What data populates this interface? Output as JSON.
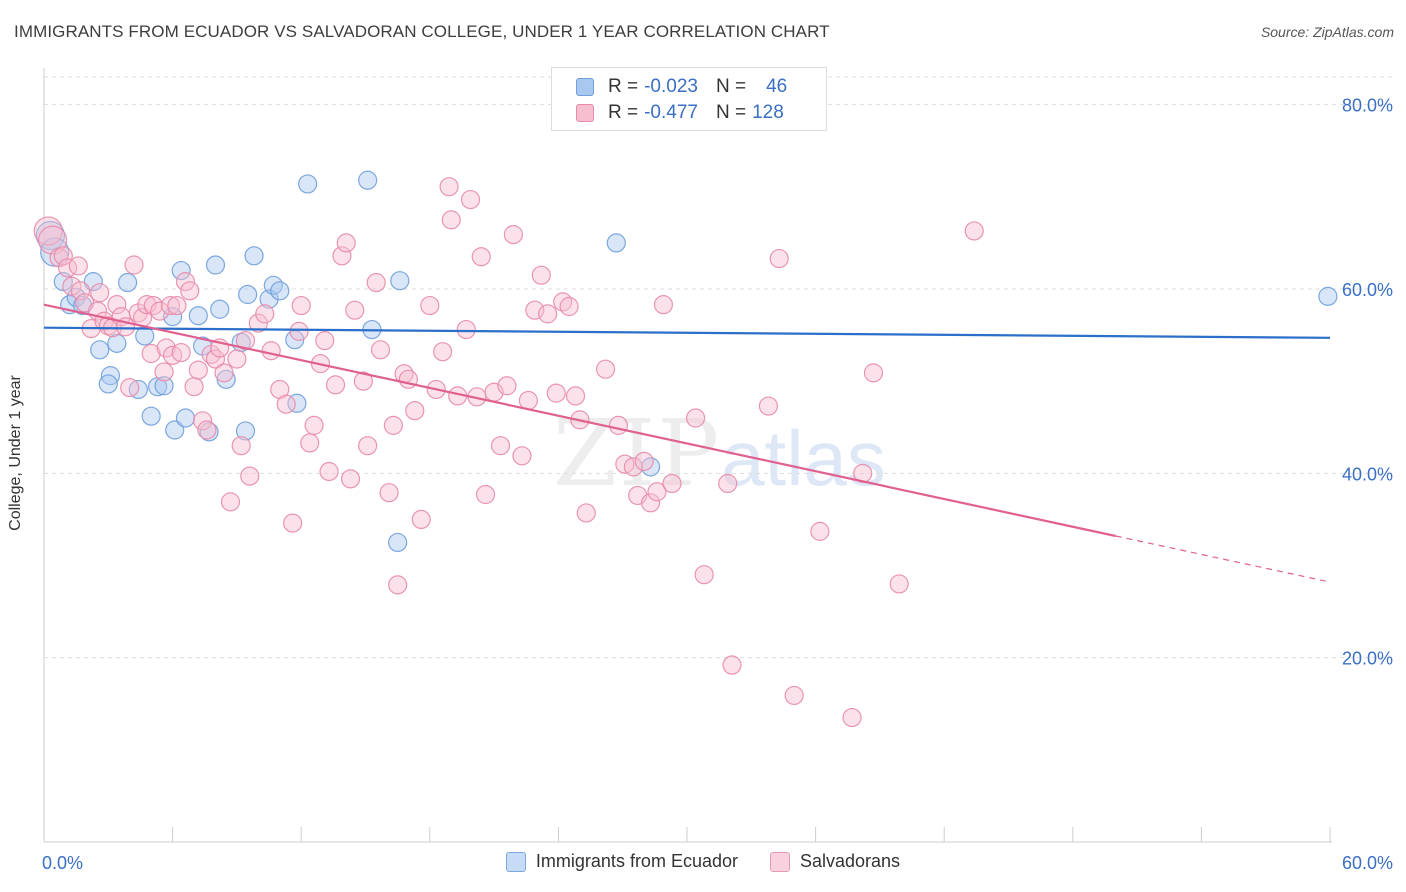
{
  "title": "IMMIGRANTS FROM ECUADOR VS SALVADORAN COLLEGE, UNDER 1 YEAR CORRELATION CHART",
  "source": "Source: ZipAtlas.com",
  "watermark": {
    "zip": "ZIP",
    "atlas": "atlas"
  },
  "colors": {
    "blue_fill": "#a9c8f0",
    "blue_stroke": "#6f9fdc",
    "blue_line": "#2a6fc9",
    "pink_fill": "#f6bfd0",
    "pink_stroke": "#e88aaa",
    "pink_line": "#e06090",
    "axis_label": "#3a6fc4",
    "grid": "#dddddd"
  },
  "legend_top": [
    {
      "r_label": "R =",
      "r_value": "-0.023",
      "n_label": "N =",
      "n_value": "46"
    },
    {
      "r_label": "R =",
      "r_value": "-0.477",
      "n_label": "N =",
      "n_value": "128"
    }
  ],
  "legend_bottom": [
    "Immigrants from Ecuador",
    "Salvadorans"
  ],
  "axis": {
    "ylabel": "College, Under 1 year",
    "x_min_label": "0.0%",
    "x_max_label": "60.0%"
  },
  "chart_data": {
    "type": "scatter",
    "title": "IMMIGRANTS FROM ECUADOR VS SALVADORAN COLLEGE, UNDER 1 YEAR CORRELATION CHART",
    "xlabel": "",
    "ylabel": "College, Under 1 year",
    "xlim": [
      0,
      60
    ],
    "ylim": [
      0,
      83
    ],
    "y_ticks": [
      20,
      40,
      60,
      80
    ],
    "y_tick_labels": [
      "20.0%",
      "40.0%",
      "60.0%",
      "80.0%"
    ],
    "x_tick_labels": [
      "0.0%",
      "60.0%"
    ],
    "grid": true,
    "legend_placement": "top-center",
    "series": [
      {
        "name": "Immigrants from Ecuador",
        "R": -0.023,
        "N": 46,
        "trend": {
          "x": [
            0,
            60
          ],
          "y": [
            55.8,
            54.7
          ]
        },
        "points": [
          [
            0.3,
            65.8
          ],
          [
            0.5,
            64.0
          ],
          [
            0.9,
            60.8
          ],
          [
            1.2,
            58.3
          ],
          [
            1.5,
            59.1
          ],
          [
            1.8,
            58.2
          ],
          [
            2.3,
            60.8
          ],
          [
            2.6,
            53.4
          ],
          [
            3.1,
            50.6
          ],
          [
            3.0,
            49.7
          ],
          [
            3.4,
            54.1
          ],
          [
            3.9,
            60.7
          ],
          [
            4.4,
            49.1
          ],
          [
            4.7,
            54.9
          ],
          [
            5.0,
            46.2
          ],
          [
            5.3,
            49.4
          ],
          [
            5.6,
            49.5
          ],
          [
            6.0,
            57.0
          ],
          [
            6.1,
            44.7
          ],
          [
            6.4,
            62.0
          ],
          [
            6.6,
            46.0
          ],
          [
            7.2,
            57.1
          ],
          [
            7.4,
            53.8
          ],
          [
            7.7,
            44.5
          ],
          [
            8.0,
            62.6
          ],
          [
            8.2,
            57.8
          ],
          [
            8.5,
            50.2
          ],
          [
            9.2,
            54.2
          ],
          [
            9.4,
            44.6
          ],
          [
            9.5,
            59.4
          ],
          [
            9.8,
            63.6
          ],
          [
            10.5,
            58.9
          ],
          [
            10.7,
            60.4
          ],
          [
            11.0,
            59.8
          ],
          [
            11.7,
            54.5
          ],
          [
            11.8,
            47.6
          ],
          [
            12.3,
            71.4
          ],
          [
            15.1,
            71.8
          ],
          [
            15.3,
            55.6
          ],
          [
            16.5,
            32.5
          ],
          [
            16.6,
            60.9
          ],
          [
            26.7,
            65.0
          ],
          [
            28.3,
            40.7
          ],
          [
            59.9,
            59.2
          ]
        ]
      },
      {
        "name": "Salvadorans",
        "R": -0.477,
        "N": 128,
        "trend": {
          "x": [
            0,
            50
          ],
          "y": [
            58.3,
            33.2
          ]
        },
        "trend_dashed": {
          "x": [
            50,
            60
          ],
          "y": [
            33.2,
            28.2
          ]
        },
        "points": [
          [
            0.2,
            66.3
          ],
          [
            0.4,
            65.3
          ],
          [
            0.7,
            63.4
          ],
          [
            0.9,
            63.6
          ],
          [
            1.1,
            62.3
          ],
          [
            1.3,
            60.3
          ],
          [
            1.6,
            62.5
          ],
          [
            1.7,
            59.8
          ],
          [
            1.9,
            58.5
          ],
          [
            2.2,
            55.7
          ],
          [
            2.5,
            57.6
          ],
          [
            2.6,
            59.6
          ],
          [
            2.8,
            56.5
          ],
          [
            3.0,
            56.0
          ],
          [
            3.2,
            55.8
          ],
          [
            3.4,
            58.3
          ],
          [
            3.6,
            57.0
          ],
          [
            3.8,
            55.9
          ],
          [
            4.0,
            49.3
          ],
          [
            4.2,
            62.6
          ],
          [
            4.4,
            57.4
          ],
          [
            4.6,
            56.9
          ],
          [
            4.8,
            58.3
          ],
          [
            5.0,
            53.0
          ],
          [
            5.1,
            58.2
          ],
          [
            5.4,
            57.6
          ],
          [
            5.6,
            51.0
          ],
          [
            5.7,
            53.6
          ],
          [
            5.9,
            58.2
          ],
          [
            6.0,
            52.8
          ],
          [
            6.2,
            58.2
          ],
          [
            6.4,
            53.1
          ],
          [
            6.6,
            60.8
          ],
          [
            6.8,
            59.8
          ],
          [
            7.0,
            49.4
          ],
          [
            7.2,
            51.2
          ],
          [
            7.4,
            45.7
          ],
          [
            7.6,
            44.7
          ],
          [
            7.8,
            52.9
          ],
          [
            8.0,
            52.4
          ],
          [
            8.2,
            53.6
          ],
          [
            8.4,
            50.9
          ],
          [
            8.7,
            36.9
          ],
          [
            9.0,
            52.4
          ],
          [
            9.2,
            43.0
          ],
          [
            9.4,
            54.4
          ],
          [
            9.6,
            39.7
          ],
          [
            10.0,
            56.3
          ],
          [
            10.3,
            57.3
          ],
          [
            10.6,
            53.3
          ],
          [
            11.0,
            49.1
          ],
          [
            11.3,
            47.5
          ],
          [
            11.6,
            34.6
          ],
          [
            11.9,
            55.4
          ],
          [
            12.0,
            58.2
          ],
          [
            12.4,
            43.3
          ],
          [
            12.6,
            45.2
          ],
          [
            12.9,
            51.9
          ],
          [
            13.1,
            54.4
          ],
          [
            13.3,
            40.2
          ],
          [
            13.6,
            49.6
          ],
          [
            13.9,
            63.6
          ],
          [
            14.1,
            65.0
          ],
          [
            14.3,
            39.4
          ],
          [
            14.5,
            57.7
          ],
          [
            14.9,
            50.0
          ],
          [
            15.1,
            43.0
          ],
          [
            15.5,
            60.7
          ],
          [
            15.7,
            53.4
          ],
          [
            16.1,
            37.9
          ],
          [
            16.3,
            45.2
          ],
          [
            16.5,
            27.9
          ],
          [
            16.8,
            50.8
          ],
          [
            17.0,
            50.2
          ],
          [
            17.3,
            46.8
          ],
          [
            17.6,
            35.0
          ],
          [
            18.0,
            58.2
          ],
          [
            18.3,
            49.1
          ],
          [
            18.6,
            53.2
          ],
          [
            18.9,
            71.1
          ],
          [
            19.0,
            67.5
          ],
          [
            19.3,
            48.4
          ],
          [
            19.7,
            55.6
          ],
          [
            19.9,
            69.7
          ],
          [
            20.2,
            48.3
          ],
          [
            20.4,
            63.5
          ],
          [
            20.6,
            37.7
          ],
          [
            21.0,
            48.8
          ],
          [
            21.3,
            43.0
          ],
          [
            21.6,
            49.5
          ],
          [
            21.9,
            65.9
          ],
          [
            22.3,
            41.9
          ],
          [
            22.6,
            47.9
          ],
          [
            22.9,
            57.7
          ],
          [
            23.2,
            61.5
          ],
          [
            23.5,
            57.3
          ],
          [
            23.9,
            48.7
          ],
          [
            24.2,
            58.6
          ],
          [
            24.5,
            58.1
          ],
          [
            24.8,
            48.4
          ],
          [
            25.0,
            45.8
          ],
          [
            25.3,
            35.7
          ],
          [
            26.2,
            51.3
          ],
          [
            26.8,
            45.2
          ],
          [
            27.1,
            41.0
          ],
          [
            27.5,
            40.7
          ],
          [
            27.7,
            37.6
          ],
          [
            28.0,
            41.3
          ],
          [
            28.3,
            36.8
          ],
          [
            28.6,
            38.0
          ],
          [
            28.9,
            58.3
          ],
          [
            29.3,
            38.9
          ],
          [
            30.4,
            46.0
          ],
          [
            30.8,
            29.0
          ],
          [
            31.9,
            38.9
          ],
          [
            32.1,
            19.2
          ],
          [
            33.8,
            47.3
          ],
          [
            34.3,
            63.3
          ],
          [
            35.0,
            15.9
          ],
          [
            36.2,
            33.7
          ],
          [
            37.7,
            13.5
          ],
          [
            38.2,
            40.0
          ],
          [
            38.7,
            50.9
          ],
          [
            39.9,
            28.0
          ],
          [
            43.4,
            66.3
          ]
        ]
      }
    ]
  }
}
